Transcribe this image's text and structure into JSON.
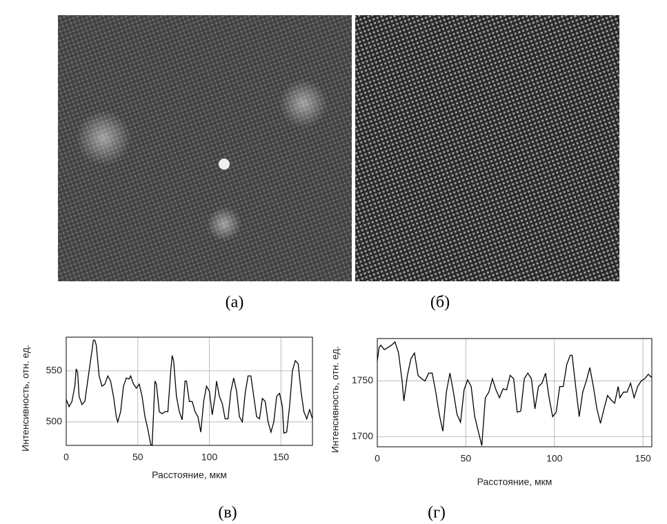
{
  "images": [
    {
      "caption": "(а)"
    },
    {
      "caption": "(б)"
    }
  ],
  "chart_data": [
    {
      "type": "line",
      "caption": "(в)",
      "xlabel": "Расстояние, мкм",
      "ylabel": "Интенсивность, отн. ед.",
      "xlim": [
        0,
        172
      ],
      "xticks": [
        0,
        50,
        100,
        150
      ],
      "ylim": [
        477,
        583
      ],
      "yticks": [
        500,
        550
      ],
      "grid": true,
      "color": "#000000",
      "x": [
        0,
        2,
        4,
        6,
        7,
        8,
        9,
        11,
        13,
        15,
        17,
        19,
        20,
        21,
        23,
        25,
        27,
        29,
        31,
        33,
        35,
        36,
        38,
        40,
        42,
        44,
        45,
        47,
        49,
        51,
        53,
        55,
        57,
        59,
        60,
        62,
        63,
        65,
        67,
        69,
        71,
        73,
        74,
        75,
        77,
        79,
        81,
        83,
        84,
        86,
        88,
        90,
        92,
        94,
        96,
        98,
        100,
        102,
        104,
        105,
        107,
        109,
        111,
        113,
        115,
        117,
        119,
        121,
        123,
        125,
        127,
        129,
        131,
        133,
        135,
        137,
        139,
        141,
        143,
        145,
        147,
        149,
        151,
        152,
        154,
        156,
        158,
        160,
        162,
        164,
        166,
        168,
        170,
        172
      ],
      "values": [
        522,
        515,
        520,
        535,
        552,
        548,
        525,
        517,
        520,
        540,
        560,
        580,
        580,
        575,
        545,
        535,
        537,
        545,
        540,
        525,
        505,
        500,
        510,
        535,
        543,
        542,
        545,
        537,
        533,
        537,
        525,
        505,
        493,
        478,
        477,
        540,
        537,
        510,
        508,
        510,
        510,
        550,
        565,
        560,
        525,
        510,
        502,
        540,
        540,
        520,
        520,
        510,
        505,
        490,
        520,
        535,
        530,
        507,
        525,
        540,
        525,
        518,
        503,
        503,
        530,
        543,
        530,
        505,
        500,
        528,
        545,
        545,
        525,
        505,
        503,
        523,
        520,
        500,
        490,
        500,
        525,
        528,
        515,
        489,
        490,
        515,
        550,
        560,
        557,
        530,
        510,
        503,
        512,
        503
      ]
    },
    {
      "type": "line",
      "caption": "(г)",
      "xlabel": "Расстояние, мкм",
      "ylabel": "Интенсивность, отн. ед.",
      "xlim": [
        0,
        155
      ],
      "xticks": [
        0,
        50,
        100,
        150
      ],
      "ylim": [
        1691,
        1788
      ],
      "yticks": [
        1700,
        1750
      ],
      "grid": true,
      "color": "#000000",
      "x": [
        0,
        1,
        2,
        4,
        6,
        8,
        10,
        12,
        14,
        15,
        17,
        19,
        21,
        23,
        25,
        27,
        29,
        31,
        33,
        35,
        37,
        39,
        41,
        43,
        45,
        47,
        49,
        51,
        53,
        55,
        57,
        59,
        61,
        63,
        65,
        67,
        69,
        71,
        73,
        75,
        77,
        79,
        81,
        83,
        85,
        87,
        89,
        91,
        93,
        95,
        97,
        99,
        101,
        103,
        105,
        107,
        109,
        110,
        112,
        114,
        116,
        118,
        120,
        122,
        124,
        126,
        128,
        130,
        132,
        134,
        136,
        137,
        139,
        141,
        143,
        145,
        147,
        149,
        151,
        153,
        155
      ],
      "values": [
        1768,
        1780,
        1782,
        1778,
        1780,
        1782,
        1785,
        1775,
        1750,
        1732,
        1755,
        1770,
        1775,
        1755,
        1752,
        1750,
        1757,
        1757,
        1740,
        1720,
        1705,
        1740,
        1757,
        1740,
        1720,
        1713,
        1742,
        1751,
        1745,
        1718,
        1705,
        1692,
        1735,
        1740,
        1752,
        1742,
        1735,
        1743,
        1742,
        1755,
        1752,
        1722,
        1723,
        1752,
        1757,
        1752,
        1725,
        1745,
        1748,
        1757,
        1735,
        1718,
        1722,
        1745,
        1745,
        1765,
        1773,
        1773,
        1745,
        1718,
        1740,
        1750,
        1762,
        1745,
        1725,
        1712,
        1725,
        1737,
        1733,
        1730,
        1745,
        1735,
        1740,
        1740,
        1748,
        1735,
        1745,
        1750,
        1752,
        1756,
        1753
      ]
    }
  ]
}
